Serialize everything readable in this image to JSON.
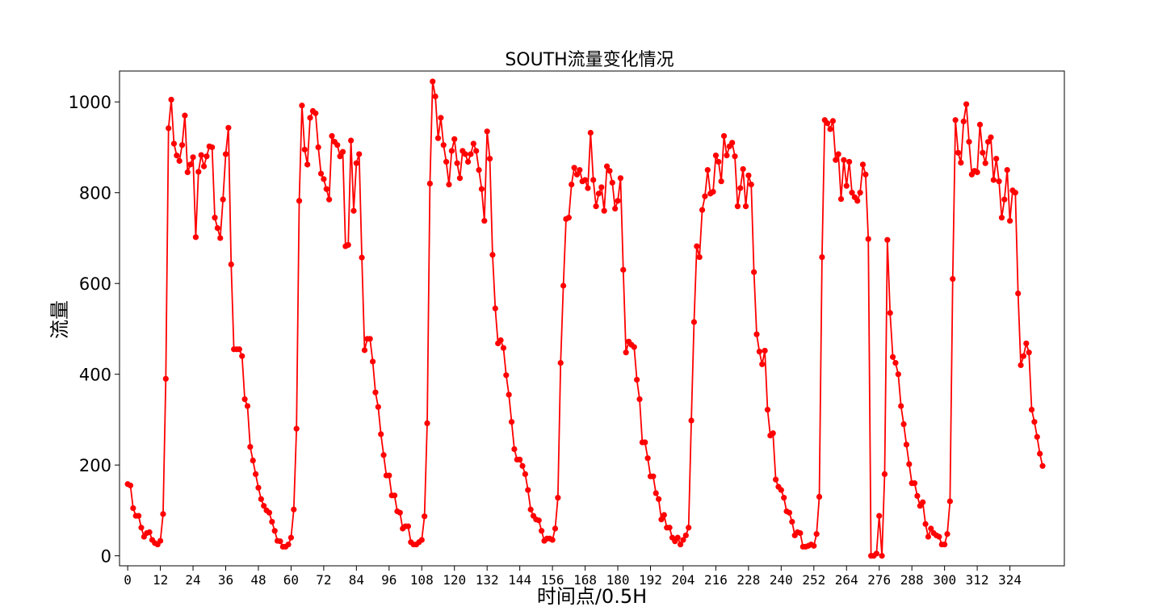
{
  "chart_data": {
    "type": "line",
    "title": "SOUTH流量变化情况",
    "xlabel": "时间点/0.5H",
    "ylabel": "流量",
    "xlim": [
      -3,
      344
    ],
    "ylim": [
      -22,
      1068
    ],
    "xticks": [
      0,
      12,
      24,
      36,
      48,
      60,
      72,
      84,
      96,
      108,
      120,
      132,
      144,
      156,
      168,
      180,
      192,
      204,
      216,
      228,
      240,
      252,
      264,
      276,
      288,
      300,
      312,
      324
    ],
    "yticks": [
      0,
      200,
      400,
      600,
      800,
      1000
    ],
    "grid": false,
    "legend": "none",
    "color": "#ff0000",
    "marker": "circle",
    "series": [
      {
        "values": [
          158,
          155,
          105,
          88,
          88,
          62,
          42,
          50,
          52,
          35,
          28,
          25,
          33,
          92,
          390,
          942,
          1005,
          908,
          882,
          870,
          905,
          970,
          845,
          862,
          878,
          702,
          846,
          883,
          858,
          880,
          902,
          900,
          745,
          722,
          700,
          785,
          885,
          943,
          642,
          455,
          455,
          455,
          440,
          345,
          330,
          240,
          210,
          180,
          150,
          125,
          110,
          100,
          95,
          75,
          55,
          33,
          32,
          20,
          20,
          25,
          40,
          102,
          280,
          782,
          992,
          895,
          862,
          965,
          980,
          975,
          900,
          842,
          830,
          808,
          785,
          925,
          912,
          905,
          880,
          890,
          682,
          685,
          915,
          760,
          865,
          885,
          657,
          453,
          478,
          478,
          428,
          360,
          328,
          268,
          222,
          177,
          177,
          133,
          133,
          98,
          95,
          60,
          65,
          65,
          30,
          25,
          25,
          30,
          35,
          87,
          292,
          820,
          1045,
          1012,
          920,
          965,
          905,
          868,
          818,
          892,
          918,
          865,
          832,
          892,
          885,
          868,
          885,
          908,
          892,
          850,
          808,
          738,
          935,
          875,
          663,
          545,
          468,
          475,
          458,
          398,
          355,
          295,
          235,
          212,
          212,
          198,
          180,
          145,
          102,
          88,
          80,
          78,
          55,
          33,
          38,
          38,
          35,
          60,
          128,
          425,
          595,
          742,
          745,
          818,
          855,
          840,
          850,
          825,
          828,
          810,
          932,
          828,
          770,
          798,
          812,
          760,
          858,
          848,
          822,
          765,
          782,
          832,
          630,
          448,
          472,
          465,
          460,
          388,
          345,
          250,
          250,
          215,
          175,
          175,
          138,
          125,
          80,
          90,
          62,
          62,
          40,
          32,
          40,
          25,
          35,
          45,
          62,
          298,
          515,
          682,
          658,
          762,
          792,
          850,
          798,
          802,
          882,
          868,
          825,
          925,
          882,
          902,
          910,
          880,
          770,
          810,
          852,
          770,
          838,
          818,
          625,
          488,
          450,
          422,
          452,
          322,
          265,
          270,
          168,
          152,
          145,
          128,
          98,
          95,
          75,
          45,
          52,
          50,
          20,
          20,
          22,
          25,
          22,
          48,
          130,
          658,
          960,
          953,
          940,
          958,
          872,
          885,
          786,
          872,
          815,
          868,
          800,
          790,
          782,
          800,
          862,
          840,
          698,
          0,
          0,
          5,
          88,
          0,
          180,
          696,
          535,
          438,
          425,
          400,
          330,
          290,
          245,
          202,
          160,
          160,
          132,
          110,
          118,
          70,
          42,
          60,
          50,
          45,
          42,
          25,
          25,
          48,
          120,
          610,
          960,
          888,
          866,
          957,
          995,
          912,
          840,
          848,
          845,
          950,
          888,
          865,
          912,
          922,
          828,
          875,
          825,
          745,
          785,
          850,
          738,
          805,
          800,
          578,
          420,
          440,
          468,
          448,
          322,
          295,
          262,
          225,
          198
        ]
      }
    ]
  }
}
